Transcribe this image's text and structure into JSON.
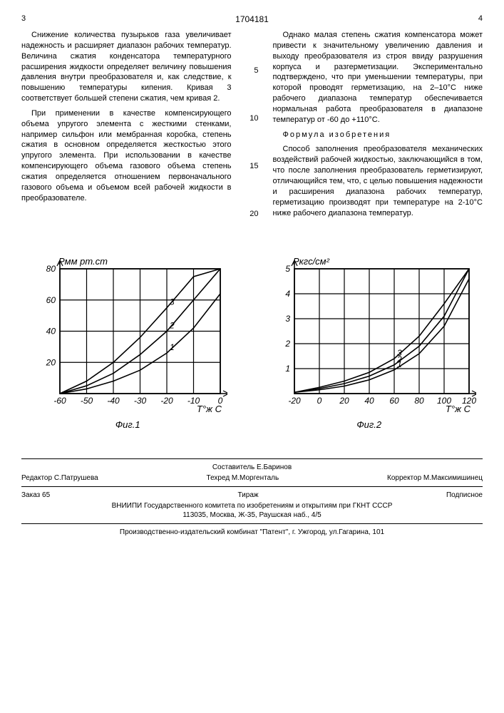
{
  "page": {
    "left_num": "3",
    "doc_num": "1704181",
    "right_num": "4"
  },
  "col_left": {
    "p1": "Снижение количества пузырьков газа увеличивает надежность и расширяет диапазон рабочих температур. Величина сжатия конденсатора температурного расширения жидкости определяет величину повышения давления внутри преобразователя и, как следствие, к повышению температуры кипения. Кривая 3 соответствует большей степени сжатия, чем кривая 2.",
    "p2": "При применении в качестве компенсирующего объема упругого элемента с жесткими стенками, например сильфон или мембранная коробка, степень сжатия в основном определяется жесткостью этого упругого элемента. При использовании в качестве компенсирующего объема газового объема степень сжатия определяется отношением первоначального газового объема и объемом всей рабочей жидкости в преобразователе."
  },
  "col_right": {
    "p1": "Однако малая степень сжатия компенсатора может привести к значительному увеличению давления и выходу преобразователя из строя ввиду разрушения корпуса и разгерметизации. Экспериментально подтверждено, что при уменьшении температуры, при которой проводят герметизацию, на 2–10°С ниже рабочего диапазона температур обеспечивается нормальная работа преобразователя в диапазоне температур от -60 до +110°С.",
    "formula_title": "Формула изобретения",
    "p2": "Способ заполнения преобразователя механических воздействий рабочей жидкостью, заключающийся в том, что после заполнения преобразователь герметизируют, отличающийся тем, что, с целью повышения надежности и расширения диапазона рабочих температур, герметизацию производят при температуре на 2-10°С ниже рабочего диапазона температур."
  },
  "line_nums": [
    "5",
    "10",
    "15",
    "20"
  ],
  "fig1": {
    "caption": "Фиг.1",
    "ylabel": "Pмм рт.ст",
    "xlabel": "T°ж C",
    "xlim": [
      -60,
      0
    ],
    "ylim": [
      0,
      80
    ],
    "xticks": [
      -60,
      -50,
      -40,
      -30,
      -20,
      -10,
      0
    ],
    "yticks": [
      0,
      20,
      40,
      60,
      80
    ],
    "series": [
      {
        "label": "1",
        "points": [
          [
            -60,
            0
          ],
          [
            -50,
            3
          ],
          [
            -40,
            8
          ],
          [
            -30,
            15
          ],
          [
            -20,
            26
          ],
          [
            -10,
            42
          ],
          [
            0,
            64
          ]
        ]
      },
      {
        "label": "2",
        "points": [
          [
            -60,
            0
          ],
          [
            -50,
            5
          ],
          [
            -40,
            13
          ],
          [
            -30,
            25
          ],
          [
            -20,
            40
          ],
          [
            -10,
            60
          ],
          [
            0,
            80
          ]
        ]
      },
      {
        "label": "3",
        "points": [
          [
            -60,
            0
          ],
          [
            -50,
            8
          ],
          [
            -40,
            20
          ],
          [
            -30,
            36
          ],
          [
            -20,
            55
          ],
          [
            -10,
            75
          ],
          [
            0,
            80
          ]
        ]
      }
    ],
    "line_color": "#000000",
    "grid_color": "#000000",
    "bg": "#ffffff"
  },
  "fig2": {
    "caption": "Фиг.2",
    "ylabel": "Pкгс/см²",
    "xlabel": "T°ж C",
    "xlim": [
      -20,
      120
    ],
    "ylim": [
      0,
      5
    ],
    "xticks": [
      -20,
      0,
      20,
      40,
      60,
      80,
      100,
      120
    ],
    "yticks": [
      0,
      1,
      2,
      3,
      4,
      5
    ],
    "series": [
      {
        "label": "1",
        "points": [
          [
            -20,
            0.05
          ],
          [
            0,
            0.15
          ],
          [
            20,
            0.3
          ],
          [
            40,
            0.55
          ],
          [
            60,
            0.95
          ],
          [
            80,
            1.6
          ],
          [
            100,
            2.7
          ],
          [
            120,
            4.6
          ]
        ]
      },
      {
        "label": "2",
        "points": [
          [
            -20,
            0.05
          ],
          [
            0,
            0.2
          ],
          [
            20,
            0.4
          ],
          [
            40,
            0.7
          ],
          [
            60,
            1.15
          ],
          [
            80,
            1.9
          ],
          [
            100,
            3.1
          ],
          [
            120,
            5.0
          ]
        ]
      },
      {
        "label": "3",
        "points": [
          [
            -20,
            0.05
          ],
          [
            0,
            0.25
          ],
          [
            20,
            0.5
          ],
          [
            40,
            0.85
          ],
          [
            60,
            1.4
          ],
          [
            80,
            2.3
          ],
          [
            100,
            3.6
          ],
          [
            120,
            5.0
          ]
        ]
      }
    ],
    "line_color": "#000000",
    "grid_color": "#000000",
    "bg": "#ffffff"
  },
  "footer": {
    "compiler": "Составитель Е.Баринов",
    "editor": "Редактор С.Патрушева",
    "tech": "Техред М.Моргенталь",
    "corrector": "Корректор М.Максимишинец",
    "order": "Заказ 65",
    "tirage": "Тираж",
    "subscribe": "Подписное",
    "org": "ВНИИПИ Государственного комитета по изобретениям и открытиям при ГКНТ СССР",
    "address": "113035, Москва, Ж-35, Раушская наб., 4/5",
    "printer": "Производственно-издательский комбинат \"Патент\", г. Ужгород, ул.Гагарина, 101"
  }
}
